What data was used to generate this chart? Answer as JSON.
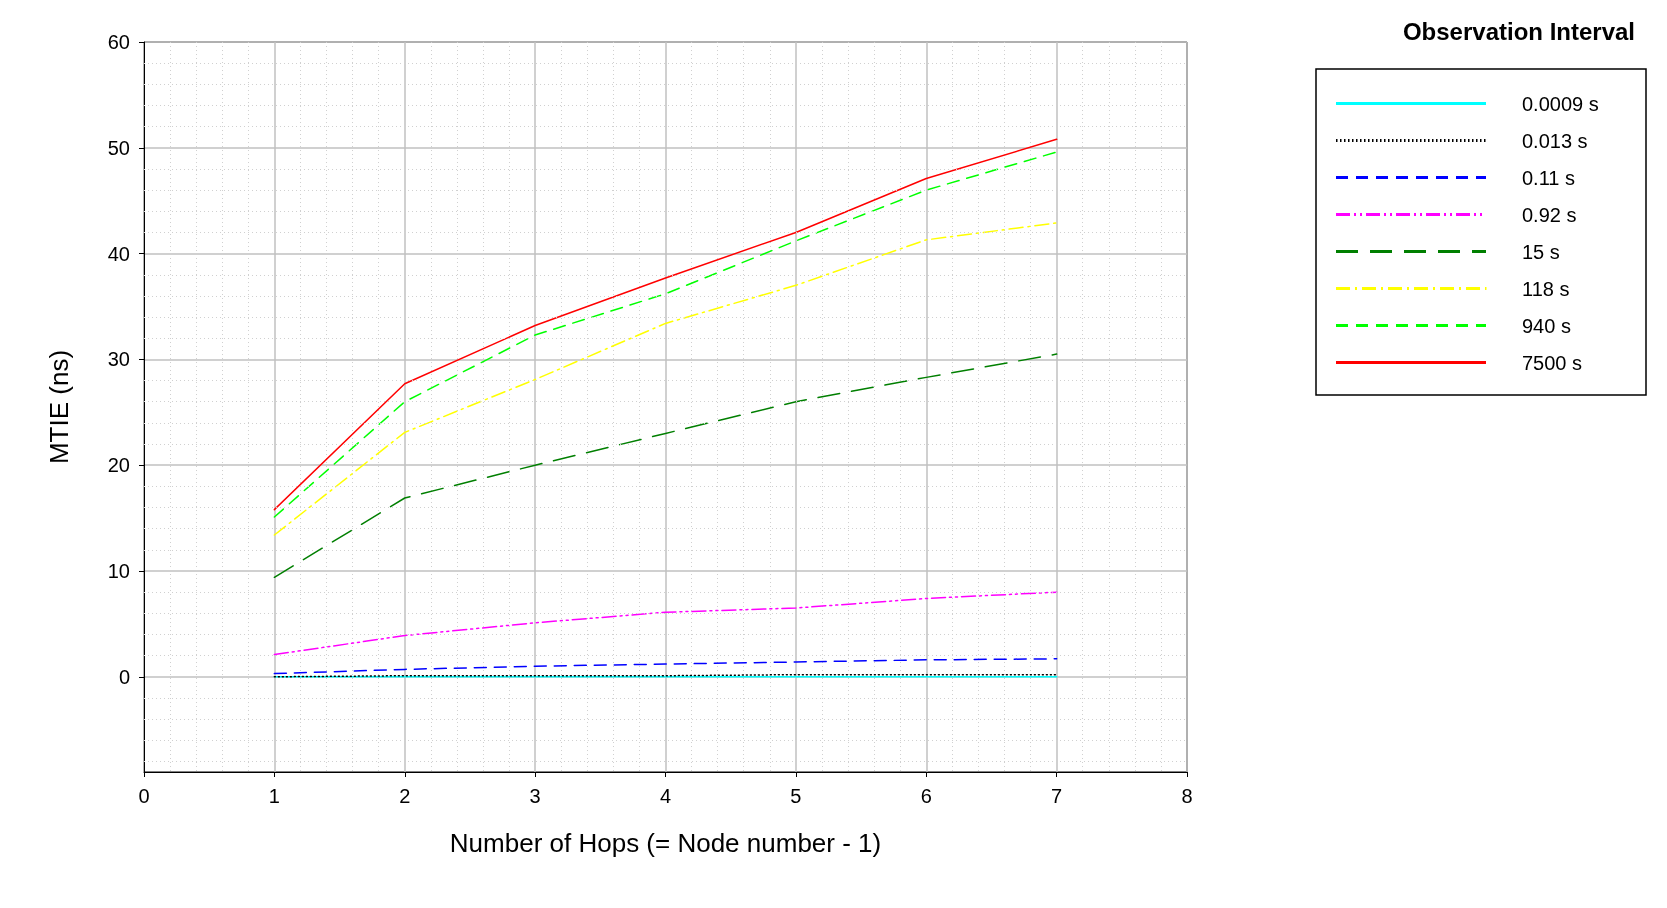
{
  "chart_data": {
    "type": "line",
    "xlabel": "Number of Hops (= Node number - 1)",
    "ylabel": "MTIE (ns)",
    "legend_title": "Observation Interval",
    "legend": "top right",
    "grid": true,
    "marker": "none",
    "x": [
      1,
      2,
      3,
      4,
      5,
      6,
      7
    ],
    "xlim": [
      0,
      8
    ],
    "xticks": [
      0,
      1,
      2,
      3,
      4,
      5,
      6,
      7,
      8
    ],
    "ylim": [
      -9,
      60
    ],
    "yticks": [
      0,
      10,
      20,
      30,
      40,
      50,
      60
    ],
    "series": [
      {
        "name": "0.0009 s",
        "color": "#00ffff",
        "line_style": "solid",
        "values": [
          0,
          0,
          0,
          0,
          0,
          0,
          0
        ]
      },
      {
        "name": "0.013 s",
        "color": "#000000",
        "line_style": "dotted",
        "values": [
          0,
          0.1,
          0.1,
          0.1,
          0.2,
          0.2,
          0.2
        ]
      },
      {
        "name": "0.11 s",
        "color": "#0000ff",
        "line_style": "dashed",
        "values": [
          0.3,
          0.7,
          1.0,
          1.2,
          1.4,
          1.6,
          1.7
        ]
      },
      {
        "name": "0.92 s",
        "color": "#ff00ff",
        "line_style": "dashdotdot",
        "values": [
          2.1,
          3.9,
          5.1,
          6.1,
          6.5,
          7.4,
          8.0
        ]
      },
      {
        "name": "15 s",
        "color": "#007f00",
        "line_style": "longdash",
        "values": [
          9.4,
          16.9,
          20.0,
          23.0,
          26.0,
          28.3,
          30.5
        ]
      },
      {
        "name": "118 s",
        "color": "#ffff00",
        "line_style": "dashdot",
        "values": [
          13.4,
          23.1,
          28.1,
          33.4,
          37.0,
          41.3,
          42.9
        ]
      },
      {
        "name": "940 s",
        "color": "#00ff00",
        "line_style": "dashed",
        "values": [
          15.1,
          26.0,
          32.3,
          36.2,
          41.2,
          46.0,
          49.6
        ]
      },
      {
        "name": "7500 s",
        "color": "#ff0000",
        "line_style": "solid",
        "values": [
          15.8,
          27.7,
          33.2,
          37.7,
          42.0,
          47.1,
          50.8
        ]
      }
    ]
  }
}
